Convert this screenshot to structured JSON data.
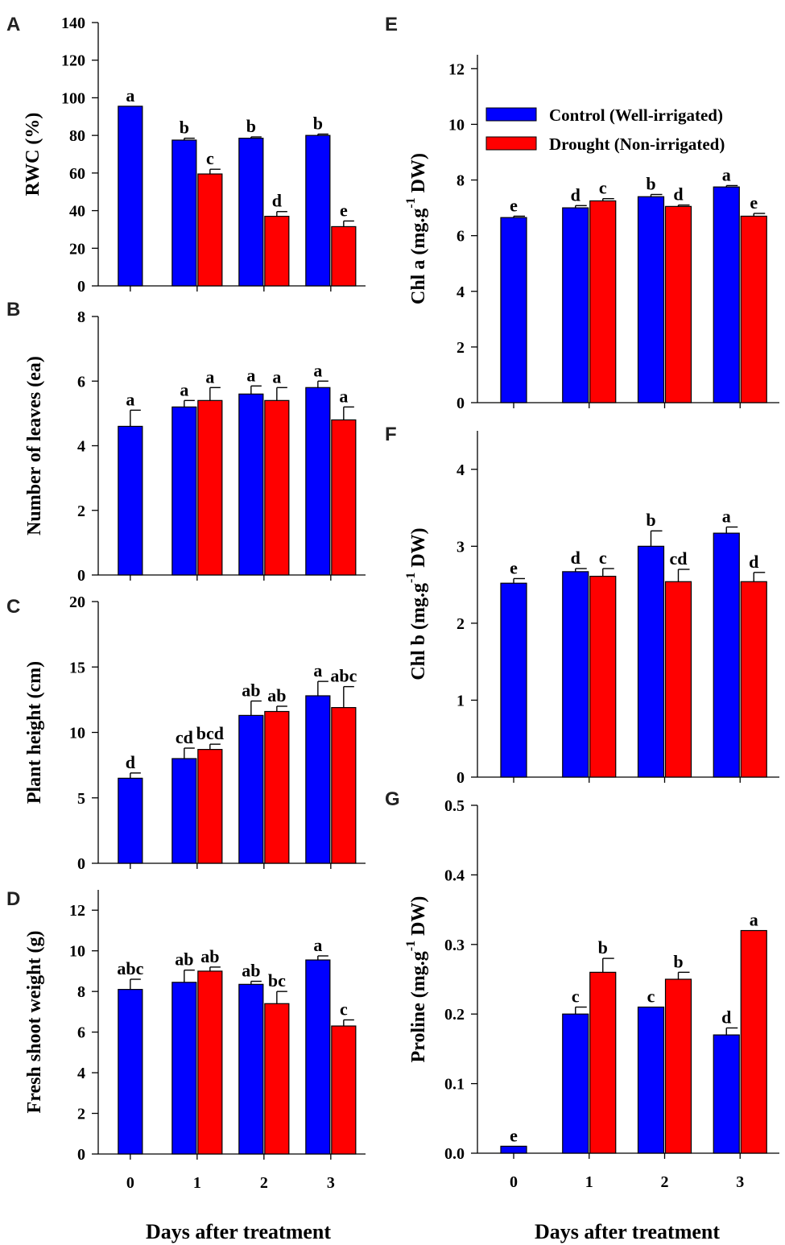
{
  "colors": {
    "control": "#0000ff",
    "drought": "#ff0000",
    "axis": "#000000"
  },
  "legend": {
    "control": "Control (Well-irrigated)",
    "drought": "Drought (Non-irrigated)"
  },
  "x_title": "Days after treatment",
  "chart_data": [
    {
      "id": "A",
      "type": "bar",
      "panel": "A",
      "ylabel": "RWC (%)",
      "ylim": [
        0,
        140
      ],
      "yticks": [
        "0",
        "20",
        "40",
        "60",
        "80",
        "100",
        "120",
        "140"
      ],
      "categories": [
        "0",
        "1",
        "2",
        "3"
      ],
      "series": [
        {
          "name": "Control (Well-irrigated)",
          "values": [
            95.5,
            77.5,
            78.5,
            80
          ],
          "errors": [
            0,
            1,
            0.7,
            0.7
          ],
          "labels": [
            "a",
            "b",
            "b",
            "b"
          ]
        },
        {
          "name": "Drought (Non-irrigated)",
          "values": [
            null,
            59.5,
            37,
            31.5
          ],
          "errors": [
            null,
            2.5,
            2.5,
            3
          ],
          "labels": [
            null,
            "c",
            "d",
            "e"
          ]
        }
      ]
    },
    {
      "id": "B",
      "type": "bar",
      "panel": "B",
      "ylabel": "Number of leaves (ea)",
      "ylim": [
        0,
        8
      ],
      "yticks": [
        "0",
        "2",
        "4",
        "6",
        "8"
      ],
      "categories": [
        "0",
        "1",
        "2",
        "3"
      ],
      "series": [
        {
          "name": "Control (Well-irrigated)",
          "values": [
            4.6,
            5.2,
            5.6,
            5.8
          ],
          "errors": [
            0.5,
            0.2,
            0.25,
            0.2
          ],
          "labels": [
            "a",
            "a",
            "a",
            "a"
          ]
        },
        {
          "name": "Drought (Non-irrigated)",
          "values": [
            null,
            5.4,
            5.4,
            4.8
          ],
          "errors": [
            null,
            0.4,
            0.4,
            0.4
          ],
          "labels": [
            null,
            "a",
            "a",
            "a"
          ]
        }
      ]
    },
    {
      "id": "C",
      "type": "bar",
      "panel": "C",
      "ylabel": "Plant height (cm)",
      "ylim": [
        0,
        20
      ],
      "yticks": [
        "0",
        "5",
        "10",
        "15",
        "20"
      ],
      "categories": [
        "0",
        "1",
        "2",
        "3"
      ],
      "series": [
        {
          "name": "Control (Well-irrigated)",
          "values": [
            6.5,
            8,
            11.3,
            12.8
          ],
          "errors": [
            0.4,
            0.8,
            1.1,
            1.1
          ],
          "labels": [
            "d",
            "cd",
            "ab",
            "a"
          ]
        },
        {
          "name": "Drought (Non-irrigated)",
          "values": [
            null,
            8.7,
            11.6,
            11.9
          ],
          "errors": [
            null,
            0.4,
            0.4,
            1.6
          ],
          "labels": [
            null,
            "bcd",
            "ab",
            "abc"
          ]
        }
      ]
    },
    {
      "id": "D",
      "type": "bar",
      "panel": "D",
      "ylabel": "Fresh shoot weight (g)",
      "ylim": [
        0,
        13
      ],
      "yticks": [
        "0",
        "2",
        "4",
        "6",
        "8",
        "10",
        "12"
      ],
      "ytick_values": [
        0,
        2,
        4,
        6,
        8,
        10,
        12
      ],
      "categories": [
        "0",
        "1",
        "2",
        "3"
      ],
      "series": [
        {
          "name": "Control (Well-irrigated)",
          "values": [
            8.1,
            8.45,
            8.35,
            9.55
          ],
          "errors": [
            0.5,
            0.6,
            0.15,
            0.2
          ],
          "labels": [
            "abc",
            "ab",
            "ab",
            "a"
          ]
        },
        {
          "name": "Drought (Non-irrigated)",
          "values": [
            null,
            9.0,
            7.4,
            6.3
          ],
          "errors": [
            null,
            0.2,
            0.6,
            0.3
          ],
          "labels": [
            null,
            "ab",
            "bc",
            "c"
          ]
        }
      ]
    },
    {
      "id": "E",
      "type": "bar",
      "panel": "E",
      "ylabel": "Chl a (mg.g",
      "ylabel_sup": "-1",
      "ylabel_end": " DW)",
      "ylim": [
        0,
        12.5
      ],
      "yticks": [
        "0",
        "2",
        "4",
        "6",
        "8",
        "10",
        "12"
      ],
      "ytick_values": [
        0,
        2,
        4,
        6,
        8,
        10,
        12
      ],
      "categories": [
        "0",
        "1",
        "2",
        "3"
      ],
      "series": [
        {
          "name": "Control (Well-irrigated)",
          "values": [
            6.65,
            7.0,
            7.4,
            7.75
          ],
          "errors": [
            0.05,
            0.08,
            0.08,
            0.05
          ],
          "labels": [
            "e",
            "d",
            "b",
            "a"
          ]
        },
        {
          "name": "Drought (Non-irrigated)",
          "values": [
            null,
            7.25,
            7.05,
            6.7
          ],
          "errors": [
            null,
            0.08,
            0.05,
            0.1
          ],
          "labels": [
            null,
            "c",
            "d",
            "e"
          ]
        }
      ]
    },
    {
      "id": "F",
      "type": "bar",
      "panel": "F",
      "ylabel": "Chl b (mg.g",
      "ylabel_sup": "-1",
      "ylabel_end": " DW)",
      "ylim": [
        0,
        4.5
      ],
      "yticks": [
        "0",
        "1",
        "2",
        "3",
        "4"
      ],
      "ytick_values": [
        0,
        1,
        2,
        3,
        4
      ],
      "categories": [
        "0",
        "1",
        "2",
        "3"
      ],
      "series": [
        {
          "name": "Control (Well-irrigated)",
          "values": [
            2.52,
            2.67,
            3.0,
            3.17
          ],
          "errors": [
            0.06,
            0.04,
            0.2,
            0.08
          ],
          "labels": [
            "e",
            "d",
            "b",
            "a"
          ]
        },
        {
          "name": "Drought (Non-irrigated)",
          "values": [
            null,
            2.61,
            2.54,
            2.54
          ],
          "errors": [
            null,
            0.1,
            0.16,
            0.12
          ],
          "labels": [
            null,
            "c",
            "cd",
            "d"
          ]
        }
      ]
    },
    {
      "id": "G",
      "type": "bar",
      "panel": "G",
      "ylabel": "Proline (mg.g",
      "ylabel_sup": "-1",
      "ylabel_end": " DW)",
      "ylim": [
        0,
        0.5
      ],
      "yticks": [
        "0.0",
        "0.1",
        "0.2",
        "0.3",
        "0.4",
        "0.5"
      ],
      "ytick_values": [
        0,
        0.1,
        0.2,
        0.3,
        0.4,
        0.5
      ],
      "categories": [
        "0",
        "1",
        "2",
        "3"
      ],
      "series": [
        {
          "name": "Control (Well-irrigated)",
          "values": [
            0.01,
            0.2,
            0.21,
            0.17
          ],
          "errors": [
            0,
            0.01,
            0,
            0.01
          ],
          "labels": [
            "e",
            "c",
            "c",
            "d"
          ]
        },
        {
          "name": "Drought (Non-irrigated)",
          "values": [
            null,
            0.26,
            0.25,
            0.32
          ],
          "errors": [
            null,
            0.02,
            0.01,
            0
          ],
          "labels": [
            null,
            "b",
            "b",
            "a"
          ]
        }
      ]
    }
  ]
}
